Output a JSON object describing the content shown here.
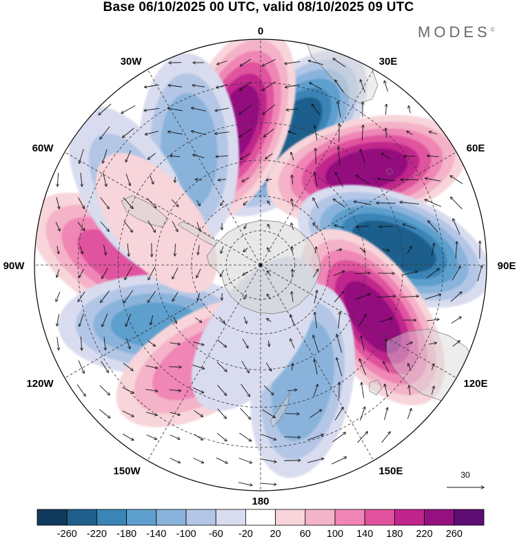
{
  "title": "Base 06/10/2025 00 UTC, valid 08/10/2025 09 UTC",
  "brand": "MODES",
  "brand_mark": "©",
  "longitude_labels": [
    {
      "key": "0",
      "text": "0"
    },
    {
      "key": "30E",
      "text": "30E"
    },
    {
      "key": "60E",
      "text": "60E"
    },
    {
      "key": "90E",
      "text": "90E"
    },
    {
      "key": "120E",
      "text": "120E"
    },
    {
      "key": "150E",
      "text": "150E"
    },
    {
      "key": "180",
      "text": "180"
    },
    {
      "key": "150W",
      "text": "150W"
    },
    {
      "key": "120W",
      "text": "120W"
    },
    {
      "key": "90W",
      "text": "90W"
    },
    {
      "key": "60W",
      "text": "60W"
    },
    {
      "key": "30W",
      "text": "30W"
    }
  ],
  "reference_vector": {
    "label": "30"
  },
  "colorbar": {
    "ticks": [
      "-260",
      "-220",
      "-180",
      "-140",
      "-100",
      "-60",
      "-20",
      "20",
      "60",
      "100",
      "140",
      "180",
      "220",
      "260"
    ],
    "colors": [
      "#113a5c",
      "#1f5f8c",
      "#3a84b6",
      "#5d9fcd",
      "#8ab3db",
      "#b3c6e6",
      "#d8dcee",
      "#ffffff",
      "#f7d5da",
      "#f4b3c8",
      "#ef86b5",
      "#e0529e",
      "#c0258c",
      "#94117f",
      "#5e0d73"
    ]
  },
  "chart_data": {
    "type": "heatmap",
    "projection": "south-polar-stereographic",
    "title": "Base 06/10/2025 00 UTC, valid 08/10/2025 09 UTC",
    "field": "anomaly (shaded) with wind vectors",
    "levels": [
      -260,
      -220,
      -180,
      -140,
      -100,
      -60,
      -20,
      20,
      60,
      100,
      140,
      180,
      220,
      260
    ],
    "reference_vector_magnitude": 30,
    "anomaly_centers": [
      {
        "lon": 12,
        "lat": -52,
        "value": -240
      },
      {
        "lon": -10,
        "lat": -50,
        "value": 230
      },
      {
        "lon": -32,
        "lat": -52,
        "value": -130
      },
      {
        "lon": 48,
        "lat": -50,
        "value": 230
      },
      {
        "lon": 82,
        "lat": -52,
        "value": -240
      },
      {
        "lon": 115,
        "lat": -55,
        "value": 230
      },
      {
        "lon": -88,
        "lat": -50,
        "value": 150
      },
      {
        "lon": -120,
        "lat": -56,
        "value": -150
      },
      {
        "lon": -150,
        "lat": -58,
        "value": 130
      },
      {
        "lon": 160,
        "lat": -55,
        "value": -140
      },
      {
        "lon": -60,
        "lat": -48,
        "value": -80
      },
      {
        "lon": -175,
        "lat": -70,
        "value": -60
      },
      {
        "lon": -68,
        "lat": -58,
        "value": 40
      }
    ]
  }
}
